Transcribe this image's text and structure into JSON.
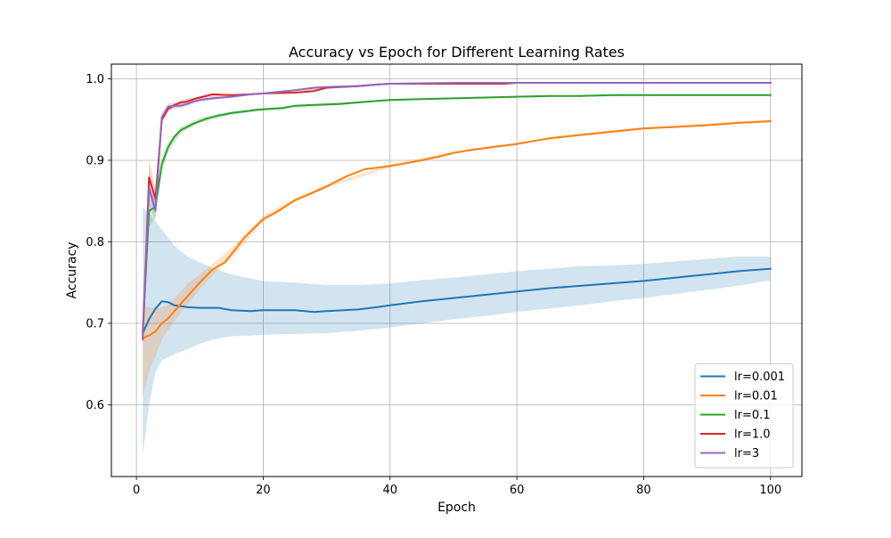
{
  "chart_data": {
    "type": "line",
    "title": "Accuracy vs Epoch for Different Learning Rates",
    "xlabel": "Epoch",
    "ylabel": "Accuracy",
    "xlim": [
      -3.95,
      104.95
    ],
    "ylim": [
      0.512,
      1.018
    ],
    "xticks": [
      0,
      20,
      40,
      60,
      80,
      100
    ],
    "xtick_labels": [
      "0",
      "20",
      "40",
      "60",
      "80",
      "100"
    ],
    "yticks": [
      0.6,
      0.7,
      0.8,
      0.9,
      1.0
    ],
    "ytick_labels": [
      "0.6",
      "0.7",
      "0.8",
      "0.9",
      "1.0"
    ],
    "grid": true,
    "legend_position": "lower-right",
    "series": [
      {
        "name": "lr=0.001",
        "color": "#1f77b4",
        "points": [
          [
            1,
            0.688
          ],
          [
            2,
            0.705
          ],
          [
            3,
            0.718
          ],
          [
            4,
            0.727
          ],
          [
            5,
            0.726
          ],
          [
            6,
            0.722
          ],
          [
            8,
            0.72
          ],
          [
            10,
            0.719
          ],
          [
            13,
            0.719
          ],
          [
            15,
            0.716
          ],
          [
            18,
            0.715
          ],
          [
            20,
            0.716
          ],
          [
            25,
            0.716
          ],
          [
            28,
            0.714
          ],
          [
            30,
            0.715
          ],
          [
            35,
            0.717
          ],
          [
            38,
            0.72
          ],
          [
            40,
            0.722
          ],
          [
            45,
            0.727
          ],
          [
            50,
            0.731
          ],
          [
            55,
            0.735
          ],
          [
            60,
            0.739
          ],
          [
            65,
            0.743
          ],
          [
            70,
            0.746
          ],
          [
            75,
            0.749
          ],
          [
            80,
            0.752
          ],
          [
            85,
            0.756
          ],
          [
            90,
            0.76
          ],
          [
            95,
            0.764
          ],
          [
            100,
            0.767
          ]
        ],
        "band": [
          [
            1,
            0.537,
            0.842
          ],
          [
            2,
            0.6,
            0.835
          ],
          [
            3,
            0.64,
            0.825
          ],
          [
            4,
            0.655,
            0.815
          ],
          [
            5,
            0.658,
            0.805
          ],
          [
            6,
            0.662,
            0.795
          ],
          [
            8,
            0.668,
            0.782
          ],
          [
            10,
            0.675,
            0.775
          ],
          [
            12,
            0.68,
            0.768
          ],
          [
            15,
            0.684,
            0.76
          ],
          [
            18,
            0.685,
            0.755
          ],
          [
            20,
            0.686,
            0.752
          ],
          [
            25,
            0.687,
            0.75
          ],
          [
            30,
            0.688,
            0.747
          ],
          [
            35,
            0.691,
            0.747
          ],
          [
            40,
            0.695,
            0.749
          ],
          [
            45,
            0.7,
            0.753
          ],
          [
            50,
            0.705,
            0.756
          ],
          [
            55,
            0.709,
            0.76
          ],
          [
            60,
            0.714,
            0.764
          ],
          [
            65,
            0.718,
            0.767
          ],
          [
            70,
            0.722,
            0.77
          ],
          [
            75,
            0.727,
            0.771
          ],
          [
            80,
            0.731,
            0.773
          ],
          [
            85,
            0.736,
            0.776
          ],
          [
            90,
            0.741,
            0.779
          ],
          [
            95,
            0.746,
            0.782
          ],
          [
            100,
            0.753,
            0.782
          ]
        ]
      },
      {
        "name": "lr=0.01",
        "color": "#ff7f0e",
        "points": [
          [
            1,
            0.682
          ],
          [
            2,
            0.685
          ],
          [
            3,
            0.69
          ],
          [
            4,
            0.7
          ],
          [
            5,
            0.706
          ],
          [
            7,
            0.724
          ],
          [
            10,
            0.75
          ],
          [
            12,
            0.766
          ],
          [
            14,
            0.775
          ],
          [
            15,
            0.785
          ],
          [
            17,
            0.805
          ],
          [
            20,
            0.828
          ],
          [
            22,
            0.836
          ],
          [
            25,
            0.851
          ],
          [
            28,
            0.861
          ],
          [
            30,
            0.868
          ],
          [
            33,
            0.88
          ],
          [
            36,
            0.889
          ],
          [
            38,
            0.891
          ],
          [
            40,
            0.893
          ],
          [
            43,
            0.897
          ],
          [
            45,
            0.9
          ],
          [
            48,
            0.905
          ],
          [
            50,
            0.909
          ],
          [
            53,
            0.913
          ],
          [
            56,
            0.916
          ],
          [
            60,
            0.92
          ],
          [
            65,
            0.927
          ],
          [
            70,
            0.931
          ],
          [
            75,
            0.935
          ],
          [
            80,
            0.939
          ],
          [
            85,
            0.941
          ],
          [
            90,
            0.943
          ],
          [
            95,
            0.946
          ],
          [
            100,
            0.948
          ]
        ],
        "band": [
          [
            1,
            0.61,
            0.72
          ],
          [
            2,
            0.64,
            0.72
          ],
          [
            3,
            0.66,
            0.718
          ],
          [
            4,
            0.68,
            0.72
          ],
          [
            5,
            0.692,
            0.722
          ],
          [
            6,
            0.703,
            0.731
          ],
          [
            8,
            0.722,
            0.748
          ],
          [
            10,
            0.742,
            0.76
          ],
          [
            12,
            0.759,
            0.773
          ],
          [
            15,
            0.78,
            0.792
          ],
          [
            20,
            0.824,
            0.832
          ],
          [
            25,
            0.849,
            0.854
          ],
          [
            30,
            0.866,
            0.87
          ],
          [
            40,
            0.891,
            0.895
          ],
          [
            50,
            0.908,
            0.911
          ],
          [
            60,
            0.919,
            0.922
          ],
          [
            70,
            0.93,
            0.933
          ],
          [
            80,
            0.938,
            0.941
          ],
          [
            90,
            0.942,
            0.945
          ],
          [
            100,
            0.947,
            0.95
          ]
        ]
      },
      {
        "name": "lr=0.1",
        "color": "#2ca02c",
        "points": [
          [
            1,
            0.69
          ],
          [
            2,
            0.838
          ],
          [
            3,
            0.843
          ],
          [
            4,
            0.895
          ],
          [
            5,
            0.916
          ],
          [
            6,
            0.929
          ],
          [
            7,
            0.937
          ],
          [
            9,
            0.945
          ],
          [
            11,
            0.951
          ],
          [
            13,
            0.955
          ],
          [
            15,
            0.958
          ],
          [
            17,
            0.96
          ],
          [
            19,
            0.962
          ],
          [
            21,
            0.963
          ],
          [
            23,
            0.964
          ],
          [
            25,
            0.967
          ],
          [
            28,
            0.968
          ],
          [
            32,
            0.969
          ],
          [
            35,
            0.971
          ],
          [
            38,
            0.973
          ],
          [
            40,
            0.974
          ],
          [
            45,
            0.975
          ],
          [
            50,
            0.976
          ],
          [
            55,
            0.977
          ],
          [
            60,
            0.978
          ],
          [
            65,
            0.979
          ],
          [
            70,
            0.979
          ],
          [
            75,
            0.98
          ],
          [
            80,
            0.98
          ],
          [
            90,
            0.98
          ],
          [
            100,
            0.98
          ]
        ],
        "band": [
          [
            1,
            0.68,
            0.7
          ],
          [
            2,
            0.818,
            0.858
          ],
          [
            3,
            0.83,
            0.856
          ],
          [
            4,
            0.885,
            0.905
          ],
          [
            5,
            0.91,
            0.922
          ],
          [
            7,
            0.933,
            0.941
          ],
          [
            10,
            0.946,
            0.952
          ],
          [
            15,
            0.956,
            0.96
          ],
          [
            20,
            0.961,
            0.964
          ],
          [
            30,
            0.967,
            0.97
          ],
          [
            40,
            0.973,
            0.975
          ],
          [
            60,
            0.977,
            0.979
          ],
          [
            80,
            0.979,
            0.981
          ],
          [
            100,
            0.979,
            0.981
          ]
        ]
      },
      {
        "name": "lr=1.0",
        "color": "#d62728",
        "points": [
          [
            1,
            0.683
          ],
          [
            2,
            0.879
          ],
          [
            3,
            0.853
          ],
          [
            4,
            0.95
          ],
          [
            5,
            0.963
          ],
          [
            6,
            0.968
          ],
          [
            7,
            0.971
          ],
          [
            8,
            0.972
          ],
          [
            9,
            0.975
          ],
          [
            10,
            0.977
          ],
          [
            12,
            0.981
          ],
          [
            15,
            0.98
          ],
          [
            18,
            0.981
          ],
          [
            20,
            0.982
          ],
          [
            25,
            0.983
          ],
          [
            28,
            0.985
          ],
          [
            30,
            0.989
          ],
          [
            35,
            0.991
          ],
          [
            38,
            0.993
          ],
          [
            40,
            0.994
          ],
          [
            50,
            0.994
          ],
          [
            58,
            0.994
          ],
          [
            60,
            0.995
          ],
          [
            70,
            0.995
          ],
          [
            80,
            0.995
          ],
          [
            90,
            0.995
          ],
          [
            100,
            0.995
          ]
        ],
        "band": [
          [
            1,
            0.678,
            0.69
          ],
          [
            2,
            0.86,
            0.899
          ],
          [
            3,
            0.84,
            0.866
          ],
          [
            4,
            0.945,
            0.955
          ],
          [
            5,
            0.96,
            0.966
          ],
          [
            7,
            0.968,
            0.974
          ],
          [
            10,
            0.975,
            0.979
          ],
          [
            15,
            0.979,
            0.981
          ],
          [
            20,
            0.981,
            0.983
          ],
          [
            30,
            0.988,
            0.99
          ],
          [
            40,
            0.993,
            0.995
          ],
          [
            60,
            0.994,
            0.996
          ],
          [
            100,
            0.994,
            0.996
          ]
        ]
      },
      {
        "name": "lr=3",
        "color": "#9467bd",
        "points": [
          [
            1,
            0.68
          ],
          [
            2,
            0.866
          ],
          [
            3,
            0.838
          ],
          [
            4,
            0.953
          ],
          [
            5,
            0.966
          ],
          [
            6,
            0.967
          ],
          [
            7,
            0.967
          ],
          [
            8,
            0.969
          ],
          [
            9,
            0.972
          ],
          [
            10,
            0.974
          ],
          [
            12,
            0.976
          ],
          [
            15,
            0.978
          ],
          [
            18,
            0.981
          ],
          [
            20,
            0.982
          ],
          [
            25,
            0.986
          ],
          [
            28,
            0.989
          ],
          [
            30,
            0.99
          ],
          [
            35,
            0.991
          ],
          [
            38,
            0.993
          ],
          [
            40,
            0.994
          ],
          [
            50,
            0.995
          ],
          [
            60,
            0.995
          ],
          [
            70,
            0.995
          ],
          [
            80,
            0.995
          ],
          [
            90,
            0.995
          ],
          [
            100,
            0.995
          ]
        ],
        "band": [
          [
            1,
            0.675,
            0.69
          ],
          [
            2,
            0.845,
            0.887
          ],
          [
            3,
            0.825,
            0.852
          ],
          [
            4,
            0.948,
            0.958
          ],
          [
            5,
            0.962,
            0.97
          ],
          [
            7,
            0.964,
            0.97
          ],
          [
            10,
            0.972,
            0.976
          ],
          [
            15,
            0.977,
            0.979
          ],
          [
            20,
            0.981,
            0.983
          ],
          [
            30,
            0.989,
            0.991
          ],
          [
            40,
            0.993,
            0.995
          ],
          [
            60,
            0.994,
            0.996
          ],
          [
            100,
            0.994,
            0.996
          ]
        ]
      }
    ]
  }
}
